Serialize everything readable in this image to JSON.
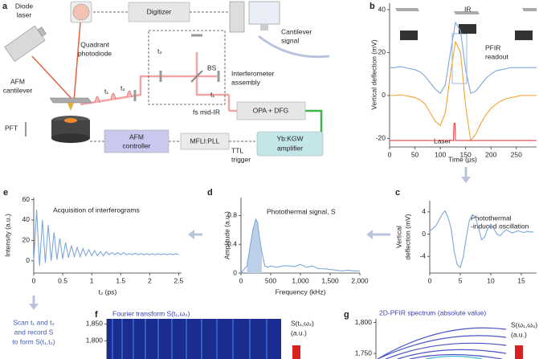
{
  "diagram": {
    "label": "a",
    "texts": [
      [
        "Diode",
        "laser"
      ],
      [
        "Quadrant",
        "photodiode"
      ],
      [
        "Digitizer"
      ],
      [
        "Cantilever",
        "signal"
      ],
      [
        "AFM",
        "cantilever"
      ],
      [
        "BS"
      ],
      [
        "Interferometer",
        "assembly"
      ],
      [
        "t₂"
      ],
      [
        "t₁"
      ],
      [
        "fs mid-IR"
      ],
      [
        "OPA + DFG"
      ],
      [
        "PFT"
      ],
      [
        "AFM",
        "controller"
      ],
      [
        "MFLI:PLL"
      ],
      [
        "TTL",
        "trigger"
      ],
      [
        "Yb:KGW",
        "amplifier"
      ],
      [
        "t₁"
      ],
      [
        "t₂"
      ]
    ]
  },
  "chart_data": [
    {
      "label": "b",
      "type": "line",
      "xlabel": "Time (μs)",
      "ylabel": [
        "Vertical deflection (mV)"
      ],
      "xlim": [
        0,
        290
      ],
      "ylim": [
        -24,
        43
      ],
      "xticks": [
        0,
        50,
        100,
        150,
        200,
        250
      ],
      "yticks": [
        -20,
        0,
        20,
        40
      ],
      "x": [
        0,
        10,
        20,
        30,
        40,
        50,
        60,
        70,
        80,
        90,
        100,
        110,
        120,
        130,
        140,
        150,
        160,
        170,
        180,
        190,
        200,
        210,
        220,
        230,
        240,
        250,
        260,
        270,
        280,
        290
      ],
      "series": [
        {
          "color": "#7ea7dc",
          "values": [
            13,
            13,
            13.5,
            13,
            12.5,
            12,
            11,
            9,
            6,
            3,
            1,
            5,
            20,
            34,
            30,
            12,
            1,
            2,
            5,
            8,
            10,
            11.5,
            12,
            12.5,
            13,
            13,
            13,
            13,
            13,
            13
          ]
        },
        {
          "color": "#f4a236",
          "values": [
            0,
            0,
            0.3,
            0,
            -0.5,
            -1,
            -2,
            -4,
            -8,
            -12,
            -14,
            -8,
            10,
            25,
            20,
            -5,
            -21,
            -18,
            -13,
            -9,
            -6,
            -4,
            -2.5,
            -1.5,
            -1,
            -0.5,
            0,
            0,
            0,
            0
          ]
        },
        {
          "color": "#e8434a",
          "x": [
            0,
            126,
            127,
            129,
            130,
            290
          ],
          "values": [
            -21,
            -21,
            -13,
            -13,
            -21,
            -21
          ]
        }
      ],
      "annotations": [
        [
          "IR"
        ],
        [
          "PFIR",
          "readout"
        ],
        [
          "Laser"
        ]
      ]
    },
    {
      "label": "c",
      "type": "line",
      "ylabel": [
        "Vertical",
        "deflection (mV)"
      ],
      "xlim": [
        0,
        17.5
      ],
      "ylim": [
        -7,
        6
      ],
      "xticks": [
        0,
        5,
        10,
        15
      ],
      "yticks": [
        -4,
        0,
        4
      ],
      "x": [
        0,
        0.5,
        1,
        1.5,
        2,
        2.5,
        3,
        3.5,
        4,
        4.5,
        5,
        5.5,
        6,
        6.5,
        7,
        7.5,
        8,
        8.5,
        9,
        9.5,
        10,
        10.5,
        11,
        11.5,
        12,
        12.5,
        13,
        13.5,
        14,
        14.5,
        15,
        15.5,
        16,
        16.5,
        17
      ],
      "series": [
        {
          "color": "#7ea7dc",
          "values": [
            0.5,
            1,
            1.5,
            2.5,
            3.5,
            4.2,
            3,
            1,
            -3,
            -5.5,
            -6,
            -4,
            -0.5,
            2.5,
            3.5,
            3,
            1,
            -1,
            -0.5,
            1,
            1.8,
            1,
            0,
            -0.3,
            0.3,
            0.8,
            0.5,
            0.2,
            0.4,
            0.6,
            0.4,
            0.3,
            0.5,
            0.4,
            0.4
          ]
        }
      ],
      "annotations": [
        [
          "Photothermal",
          "-induced oscillation"
        ]
      ]
    },
    {
      "label": "d",
      "type": "line",
      "xlabel": "Frequency (kHz)",
      "ylabel": [
        "Amplitude (a.u.)"
      ],
      "xlim": [
        0,
        2000
      ],
      "ylim": [
        0,
        1.05
      ],
      "xticks": [
        0,
        500,
        {
          "value": 1000,
          "label": "1,000"
        },
        {
          "value": 1500,
          "label": "1,500"
        },
        {
          "value": 2000,
          "label": "2,000"
        }
      ],
      "yticks": [
        0,
        0.4,
        0.8
      ],
      "x": [
        0,
        50,
        100,
        150,
        200,
        250,
        280,
        300,
        350,
        400,
        450,
        500,
        600,
        700,
        800,
        900,
        1000,
        1100,
        1200,
        1300,
        1400,
        1500,
        1600,
        1700,
        1800,
        1900,
        2000
      ],
      "series": [
        {
          "color": "#7ea7dc",
          "fill": "#bcd0ea",
          "values": [
            0,
            0.05,
            0.1,
            0.35,
            0.6,
            0.75,
            0.7,
            0.55,
            0.3,
            0.1,
            0.08,
            0.1,
            0.08,
            0.1,
            0.1,
            0.09,
            0.12,
            0.08,
            0.1,
            0.06,
            0.06,
            0.05,
            0.04,
            0.03,
            0.04,
            0.03,
            0.03
          ]
        }
      ],
      "annotations": [
        [
          "Photothermal signal, S"
        ]
      ]
    },
    {
      "label": "e",
      "type": "line",
      "xlabel": "t₂ (ps)",
      "ylabel": [
        "Intensity (a.u.)"
      ],
      "xlim": [
        0,
        2.55
      ],
      "ylim": [
        -12,
        62
      ],
      "xticks": [
        0,
        0.5,
        1,
        1.5,
        2,
        2.5
      ],
      "yticks": [
        0,
        20,
        40,
        60
      ],
      "x": [
        0,
        0.05,
        0.1,
        0.15,
        0.2,
        0.25,
        0.3,
        0.35,
        0.4,
        0.45,
        0.5,
        0.55,
        0.6,
        0.65,
        0.7,
        0.75,
        0.8,
        0.85,
        0.9,
        0.95,
        1,
        1.05,
        1.1,
        1.15,
        1.2,
        1.25,
        1.3,
        1.35,
        1.4,
        1.45,
        1.5,
        1.55,
        1.6,
        1.65,
        1.7,
        1.75,
        1.8,
        1.85,
        1.9,
        1.95,
        2,
        2.05,
        2.1,
        2.15,
        2.2,
        2.25,
        2.3,
        2.35,
        2.4,
        2.45,
        2.5
      ],
      "series": [
        {
          "color": "#7ea7dc",
          "values": [
            0,
            50,
            -5,
            40,
            -2,
            35,
            0,
            28,
            1,
            22,
            2,
            18,
            3,
            15,
            4,
            13,
            4,
            12,
            5,
            11,
            5,
            10,
            5,
            9,
            5,
            9,
            6,
            8,
            6,
            8,
            6,
            8,
            6,
            7,
            6,
            7.5,
            6,
            7,
            6,
            7,
            6,
            7,
            6,
            7,
            6,
            7,
            6,
            7,
            6,
            7,
            6
          ]
        }
      ],
      "annotations": [
        [
          "Acquisition of interferograms"
        ]
      ]
    },
    {
      "label": "f",
      "type": "heatmap",
      "title": "Fourier transform S(t₁,ω₂)",
      "colorbar_label": [
        "S(t₁,ω₂)",
        "(a.u.)"
      ],
      "ylim": [
        1746,
        1865
      ],
      "yticks": [
        {
          "value": 1850,
          "label": "1,850"
        },
        {
          "value": 1800,
          "label": "1,800"
        }
      ]
    },
    {
      "label": "g",
      "type": "contour",
      "title": "2D-PFIR spectrum (absolute value)",
      "colorbar_label": [
        "S(ω₁,ω₂)",
        "(a.u.)"
      ],
      "ylim": [
        1741,
        1806
      ],
      "yticks": [
        {
          "value": 1800,
          "label": "1,800"
        },
        {
          "value": 1750,
          "label": "1,750"
        }
      ]
    }
  ],
  "side_note": [
    "Scan t₁ and t₂",
    "and record S",
    "to form S(t₁,t₂)"
  ]
}
